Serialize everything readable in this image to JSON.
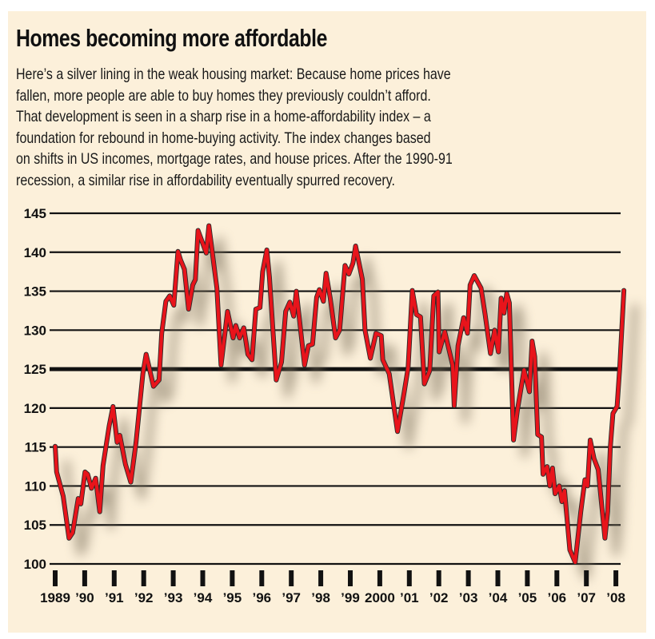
{
  "header": {
    "title": "Homes becoming more affordable",
    "description_lines": [
      "Here’s a silver lining in the weak housing market: Because home prices have",
      "fallen, more people are able to buy homes they previously couldn’t afford.",
      "That development is seen in a sharp rise in a home-affordability index – a",
      "foundation for rebound in home-buying activity. The index changes based",
      "on shifts in US incomes, mortgage rates, and house prices. After the 1990-91",
      "recession, a similar rise in affordability eventually spurred recovery."
    ]
  },
  "colors": {
    "background": "#fcf0da",
    "line": "#e8141b",
    "grid": "#111111"
  },
  "chart_data": {
    "type": "line",
    "title": "",
    "xlabel": "",
    "ylabel": "",
    "xlim": [
      1989,
      2008.3
    ],
    "ylim": [
      100,
      145
    ],
    "grid": true,
    "highlight_gridline": 125,
    "y_ticks": [
      "145",
      "140",
      "135",
      "130",
      "125",
      "120",
      "115",
      "110",
      "105",
      "100"
    ],
    "x_ticks": [
      "1989",
      "’90",
      "’91",
      "’92",
      "’93",
      "’94",
      "’95",
      "’96",
      "’97",
      "’98",
      "’99",
      "2000",
      "’01",
      "’02",
      "’03",
      "’04",
      "’05",
      "’06",
      "’07",
      "’08"
    ],
    "series": [
      {
        "x": [
          1989.0,
          1989.05,
          1989.27,
          1989.47,
          1989.59,
          1989.78,
          1989.87,
          1990.01,
          1990.1,
          1990.23,
          1990.37,
          1990.51,
          1990.62,
          1990.83,
          1990.96,
          1991.1,
          1991.19,
          1991.38,
          1991.56,
          1991.74,
          1991.97,
          1992.08,
          1992.33,
          1992.52,
          1992.61,
          1992.75,
          1992.88,
          1993.02,
          1993.16,
          1993.25,
          1993.38,
          1993.52,
          1993.66,
          1993.75,
          1993.84,
          1994.12,
          1994.21,
          1994.48,
          1994.62,
          1994.84,
          1995.03,
          1995.12,
          1995.25,
          1995.39,
          1995.53,
          1995.67,
          1995.8,
          1995.94,
          1996.03,
          1996.17,
          1996.26,
          1996.49,
          1996.67,
          1996.81,
          1996.95,
          1997.08,
          1997.17,
          1997.45,
          1997.58,
          1997.72,
          1997.86,
          1997.95,
          1998.09,
          1998.18,
          1998.32,
          1998.5,
          1998.64,
          1998.82,
          1998.95,
          1999.09,
          1999.18,
          1999.41,
          1999.5,
          1999.68,
          1999.87,
          2000.05,
          2000.1,
          2000.32,
          2000.6,
          2000.83,
          2000.96,
          2001.1,
          2001.24,
          2001.38,
          2001.51,
          2001.69,
          2001.83,
          2001.97,
          2002.01,
          2002.2,
          2002.47,
          2002.52,
          2002.65,
          2002.84,
          2002.97,
          2003.06,
          2003.2,
          2003.43,
          2003.57,
          2003.75,
          2003.89,
          2004.02,
          2004.11,
          2004.21,
          2004.3,
          2004.39,
          2004.53,
          2004.66,
          2004.89,
          2005.07,
          2005.16,
          2005.25,
          2005.35,
          2005.48,
          2005.53,
          2005.67,
          2005.76,
          2005.85,
          2005.94,
          2006.08,
          2006.17,
          2006.26,
          2006.44,
          2006.62,
          2006.81,
          2006.95,
          2007.04,
          2007.13,
          2007.26,
          2007.4,
          2007.63,
          2007.72,
          2007.81,
          2007.9,
          2008.04,
          2008.13,
          2008.27
        ],
        "y": [
          115.1,
          111.8,
          108.7,
          103.3,
          104,
          108.4,
          107.7,
          111.8,
          111.5,
          109.7,
          111,
          106.7,
          112.6,
          117.7,
          120.2,
          115.6,
          116.5,
          112.8,
          110.5,
          115.6,
          124.4,
          126.9,
          122.8,
          123.6,
          129.6,
          133.7,
          134.4,
          133.2,
          140.1,
          139,
          137.8,
          132.7,
          135.8,
          136.5,
          142.8,
          139.9,
          143.4,
          135.4,
          125.5,
          132.4,
          129,
          130.6,
          129,
          130.3,
          126.9,
          126.2,
          132.7,
          132.9,
          137.5,
          140.3,
          136.8,
          123.6,
          125.9,
          132.4,
          133.6,
          131.8,
          135,
          125.5,
          128,
          128.2,
          134.2,
          135.2,
          133.7,
          137.3,
          134.1,
          129,
          130,
          138.3,
          137.2,
          138.6,
          140.8,
          136.5,
          130,
          126.4,
          129.6,
          129.3,
          126.2,
          124.4,
          117,
          122.1,
          125.2,
          135.1,
          132,
          131.7,
          123.1,
          124.8,
          134.4,
          134.9,
          127.2,
          129.8,
          125.5,
          120.3,
          128,
          131.6,
          129.6,
          135.8,
          137,
          135.4,
          132,
          127,
          130,
          127.2,
          134.1,
          132.2,
          134.7,
          133.5,
          115.9,
          119.7,
          124.9,
          122.1,
          128.6,
          126.6,
          116.6,
          116.3,
          111.5,
          112.5,
          110,
          112.3,
          109,
          110,
          108,
          109.4,
          101.8,
          100.2,
          106.7,
          110.8,
          110,
          115.9,
          113.5,
          112.1,
          103.3,
          106.7,
          114.9,
          119.3,
          120.2,
          125.2,
          135.1
        ]
      }
    ]
  }
}
